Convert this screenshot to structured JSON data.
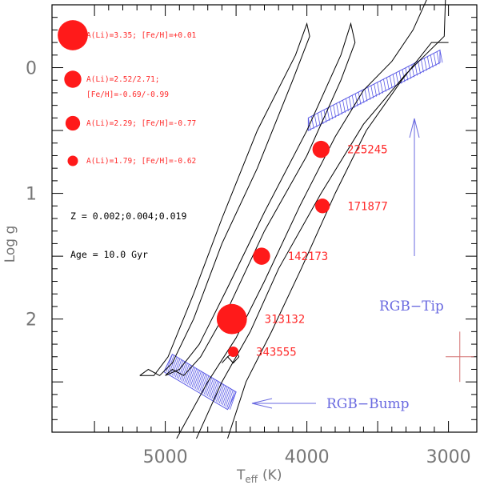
{
  "chart_data": {
    "type": "scatter",
    "xlabel": "T",
    "xlabel_sub": "eff",
    "xlabel_unit": "(K)",
    "ylabel": "Log g",
    "xlim": [
      5800,
      2800
    ],
    "ylim": [
      2.9,
      -0.5
    ],
    "x_ticks": [
      {
        "value": 5000,
        "label": "5000"
      },
      {
        "value": 4000,
        "label": "4000"
      },
      {
        "value": 3000,
        "label": "3000"
      }
    ],
    "y_ticks": [
      {
        "value": 0,
        "label": "0"
      },
      {
        "value": 1,
        "label": "1"
      },
      {
        "value": 2,
        "label": "2"
      }
    ],
    "stars": [
      {
        "id": "225245",
        "teff": 3900,
        "logg": 0.65,
        "ALi": 2.52
      },
      {
        "id": "171877",
        "teff": 3890,
        "logg": 1.1,
        "ALi": 2.29
      },
      {
        "id": "142173",
        "teff": 4320,
        "logg": 1.5,
        "ALi": 2.52
      },
      {
        "id": "313132",
        "teff": 4530,
        "logg": 2.0,
        "ALi": 3.35
      },
      {
        "id": "343555",
        "teff": 4520,
        "logg": 2.26,
        "ALi": 1.79
      }
    ],
    "legend": [
      {
        "text": "A(Li)=3.35; [Fe/H]=+0.01",
        "ALi": 3.35
      },
      {
        "text": "A(Li)=2.52/2.71;",
        "text2": "[Fe/H]=-0.69/-0.99",
        "ALi": 2.52
      },
      {
        "text": "A(Li)=2.29; [Fe/H]=-0.77",
        "ALi": 2.29
      },
      {
        "text": "A(Li)=1.79; [Fe/H]=-0.62",
        "ALi": 1.79
      }
    ],
    "notes": {
      "metallicity": "Z = 0.002;0.004;0.019",
      "age": "Age = 10.0 Gyr"
    },
    "annotations": {
      "rgb_tip": "RGB−Tip",
      "rgb_bump": "RGB−Bump"
    },
    "error_bar": {
      "teff": 2920,
      "logg": 2.3,
      "dteff": 100,
      "dlogg": 0.2
    },
    "isochrones": [
      [
        [
          4920,
          2.95
        ],
        [
          4700,
          2.5
        ],
        [
          4500,
          2.15
        ],
        [
          4300,
          1.7
        ],
        [
          4050,
          1.1
        ],
        [
          3800,
          0.55
        ],
        [
          3600,
          0.18
        ],
        [
          3400,
          -0.05
        ],
        [
          3250,
          -0.3
        ],
        [
          3150,
          -0.55
        ]
      ],
      [
        [
          4780,
          2.95
        ],
        [
          4600,
          2.5
        ],
        [
          4400,
          2.1
        ],
        [
          4200,
          1.6
        ],
        [
          3900,
          1.0
        ],
        [
          3600,
          0.45
        ],
        [
          3300,
          0.05
        ],
        [
          3030,
          -0.25
        ],
        [
          3020,
          -0.6
        ]
      ],
      [
        [
          4560,
          2.95
        ],
        [
          4430,
          2.5
        ],
        [
          4250,
          2.1
        ],
        [
          4040,
          1.6
        ],
        [
          3800,
          1.0
        ],
        [
          3580,
          0.5
        ],
        [
          3330,
          0.1
        ],
        [
          3120,
          -0.2
        ],
        [
          3000,
          -0.2
        ]
      ],
      [
        [
          5180,
          2.45
        ],
        [
          5120,
          2.4
        ],
        [
          5040,
          2.45
        ],
        [
          4950,
          2.35
        ],
        [
          4800,
          2.0
        ],
        [
          4600,
          1.4
        ],
        [
          4350,
          0.8
        ],
        [
          4100,
          0.1
        ],
        [
          3980,
          -0.25
        ],
        [
          4000,
          -0.35
        ],
        [
          4080,
          -0.1
        ],
        [
          4350,
          0.5
        ],
        [
          4600,
          1.2
        ],
        [
          4800,
          1.8
        ],
        [
          4980,
          2.3
        ],
        [
          5080,
          2.45
        ],
        [
          5180,
          2.45
        ]
      ],
      [
        [
          5000,
          2.45
        ],
        [
          4950,
          2.4
        ],
        [
          4870,
          2.45
        ],
        [
          4750,
          2.3
        ],
        [
          4550,
          1.9
        ],
        [
          4300,
          1.3
        ],
        [
          4000,
          0.7
        ],
        [
          3760,
          0.1
        ],
        [
          3660,
          -0.2
        ],
        [
          3690,
          -0.35
        ],
        [
          3760,
          -0.1
        ],
        [
          4000,
          0.5
        ],
        [
          4300,
          1.15
        ],
        [
          4560,
          1.75
        ],
        [
          4760,
          2.2
        ],
        [
          4900,
          2.4
        ],
        [
          5000,
          2.45
        ]
      ],
      [
        [
          4600,
          2.35
        ],
        [
          4560,
          2.3
        ],
        [
          4520,
          2.35
        ],
        [
          4480,
          2.3
        ],
        [
          4500,
          2.25
        ],
        [
          4560,
          2.3
        ],
        [
          4600,
          2.35
        ]
      ]
    ],
    "bands": [
      {
        "a": [
          4950,
          2.28
        ],
        "b": [
          4500,
          2.58
        ],
        "c": [
          4560,
          2.72
        ],
        "d": [
          5010,
          2.42
        ]
      },
      {
        "a": [
          3990,
          0.4
        ],
        "b": [
          3060,
          -0.14
        ],
        "c": [
          3060,
          -0.04
        ],
        "d": [
          3990,
          0.5
        ]
      }
    ]
  }
}
